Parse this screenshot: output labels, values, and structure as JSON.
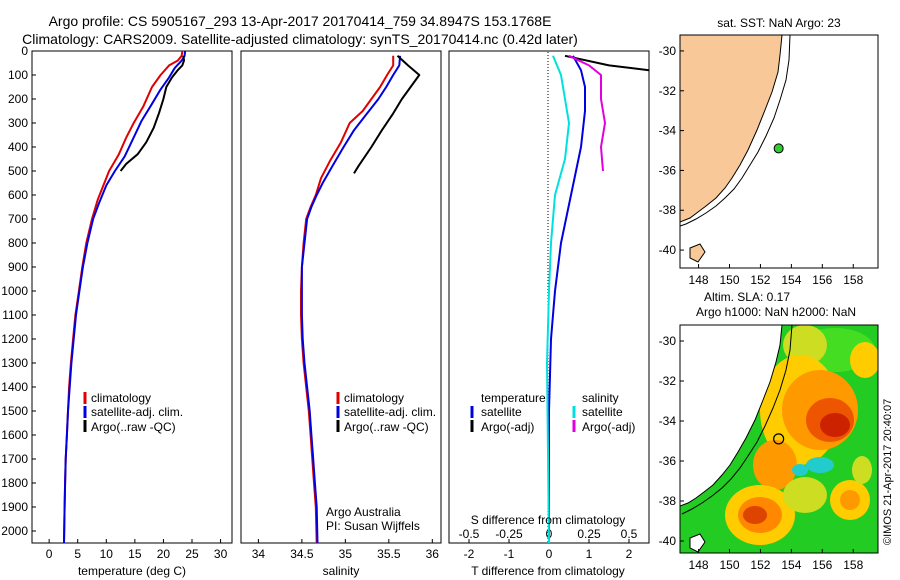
{
  "header": {
    "line1": "Argo profile: CS 5905167_293 13-Apr-2017 20170414_759 34.8947S 153.1768E",
    "line2": "Climatology: CARS2009. Satellite-adjusted climatology: synTS_20170414.nc (0.42d later)"
  },
  "credit": "©IMOS 21-Apr-2017 20:40:07",
  "colors": {
    "climatology": "#e00000",
    "satellite": "#0000e0",
    "argo": "#000000",
    "sat_salinity": "#00e0e0",
    "argo_salinity_diff": "#e000e0",
    "land": "#f8c898",
    "marker": "#33cc33"
  },
  "chart_data": [
    {
      "type": "line",
      "xlabel": "temperature (deg C)",
      "ylim": [
        0,
        2050
      ],
      "xlim": [
        -3,
        32
      ],
      "xticks": [
        "0",
        "5",
        "10",
        "15",
        "20",
        "25",
        "30"
      ],
      "yticks": [
        "0",
        "100",
        "200",
        "300",
        "400",
        "500",
        "600",
        "700",
        "800",
        "900",
        "1000",
        "1100",
        "1200",
        "1300",
        "1400",
        "1500",
        "1600",
        "1700",
        "1800",
        "1900",
        "2000"
      ],
      "legend": [
        "climatology",
        "satellite-adj. clim.",
        "Argo(..raw -QC)"
      ],
      "series": [
        {
          "name": "climatology",
          "color": "#e00000",
          "points": [
            [
              23.3,
              0
            ],
            [
              23.2,
              20
            ],
            [
              22.5,
              40
            ],
            [
              21,
              60
            ],
            [
              19.5,
              100
            ],
            [
              18,
              150
            ],
            [
              16.5,
              230
            ],
            [
              14.8,
              300
            ],
            [
              13.5,
              360
            ],
            [
              12.2,
              430
            ],
            [
              10.5,
              500
            ],
            [
              9.5,
              560
            ],
            [
              8.5,
              620
            ],
            [
              7.5,
              700
            ],
            [
              6.5,
              800
            ],
            [
              5.8,
              900
            ],
            [
              5.2,
              1000
            ],
            [
              4.6,
              1100
            ],
            [
              4.2,
              1200
            ],
            [
              3.8,
              1300
            ],
            [
              3.5,
              1400
            ],
            [
              3.3,
              1500
            ],
            [
              3.1,
              1600
            ],
            [
              2.9,
              1700
            ],
            [
              2.8,
              1800
            ],
            [
              2.7,
              1900
            ],
            [
              2.6,
              2050
            ]
          ]
        },
        {
          "name": "satellite-adj. clim.",
          "color": "#0000e0",
          "points": [
            [
              23.8,
              0
            ],
            [
              23.7,
              20
            ],
            [
              23.2,
              40
            ],
            [
              22,
              70
            ],
            [
              21,
              110
            ],
            [
              19.5,
              160
            ],
            [
              18,
              220
            ],
            [
              16.2,
              290
            ],
            [
              14.8,
              360
            ],
            [
              13.2,
              440
            ],
            [
              11.5,
              500
            ],
            [
              10,
              560
            ],
            [
              8.8,
              630
            ],
            [
              7.7,
              700
            ],
            [
              6.7,
              800
            ],
            [
              5.9,
              900
            ],
            [
              5.3,
              1000
            ],
            [
              4.7,
              1100
            ],
            [
              4.3,
              1200
            ],
            [
              3.9,
              1300
            ],
            [
              3.6,
              1400
            ],
            [
              3.3,
              1500
            ],
            [
              3.1,
              1600
            ],
            [
              2.9,
              1700
            ],
            [
              2.8,
              1800
            ],
            [
              2.7,
              1900
            ],
            [
              2.6,
              2050
            ]
          ]
        },
        {
          "name": "Argo(..raw -QC)",
          "color": "#000000",
          "points": [
            [
              23.5,
              20
            ],
            [
              23.6,
              40
            ],
            [
              23.3,
              60
            ],
            [
              22.5,
              80
            ],
            [
              21.5,
              110
            ],
            [
              20.5,
              150
            ],
            [
              20,
              200
            ],
            [
              19.2,
              260
            ],
            [
              18.3,
              320
            ],
            [
              17,
              380
            ],
            [
              15.5,
              430
            ],
            [
              13.5,
              470
            ],
            [
              12.5,
              500
            ]
          ]
        }
      ]
    },
    {
      "type": "line",
      "xlabel": "salinity",
      "ylim": [
        0,
        2050
      ],
      "xlim": [
        33.8,
        36.1
      ],
      "xticks": [
        "34",
        "34.5",
        "35",
        "35.5",
        "36"
      ],
      "legend": [
        "climatology",
        "satellite-adj. clim.",
        "Argo(..raw -QC)"
      ],
      "annotation": [
        "Argo Australia",
        "PI: Susan Wijffels"
      ],
      "series": [
        {
          "name": "climatology",
          "color": "#e00000",
          "points": [
            [
              35.55,
              20
            ],
            [
              35.55,
              60
            ],
            [
              35.48,
              100
            ],
            [
              35.4,
              150
            ],
            [
              35.3,
              200
            ],
            [
              35.2,
              250
            ],
            [
              35.05,
              300
            ],
            [
              34.95,
              380
            ],
            [
              34.82,
              460
            ],
            [
              34.72,
              530
            ],
            [
              34.66,
              600
            ],
            [
              34.6,
              650
            ],
            [
              34.55,
              700
            ],
            [
              34.52,
              800
            ],
            [
              34.5,
              900
            ],
            [
              34.49,
              1000
            ],
            [
              34.49,
              1100
            ],
            [
              34.5,
              1200
            ],
            [
              34.52,
              1300
            ],
            [
              34.55,
              1400
            ],
            [
              34.58,
              1500
            ],
            [
              34.6,
              1600
            ],
            [
              34.62,
              1700
            ],
            [
              34.64,
              1800
            ],
            [
              34.66,
              1900
            ],
            [
              34.67,
              2050
            ]
          ]
        },
        {
          "name": "satellite-adj. clim.",
          "color": "#0000e0",
          "points": [
            [
              35.63,
              20
            ],
            [
              35.62,
              60
            ],
            [
              35.55,
              100
            ],
            [
              35.47,
              150
            ],
            [
              35.38,
              200
            ],
            [
              35.25,
              260
            ],
            [
              35.1,
              330
            ],
            [
              34.98,
              400
            ],
            [
              34.85,
              480
            ],
            [
              34.74,
              550
            ],
            [
              34.67,
              600
            ],
            [
              34.61,
              650
            ],
            [
              34.56,
              700
            ],
            [
              34.53,
              800
            ],
            [
              34.5,
              900
            ],
            [
              34.5,
              1000
            ],
            [
              34.5,
              1100
            ],
            [
              34.51,
              1200
            ],
            [
              34.53,
              1300
            ],
            [
              34.56,
              1400
            ],
            [
              34.59,
              1500
            ],
            [
              34.61,
              1600
            ],
            [
              34.63,
              1700
            ],
            [
              34.65,
              1800
            ],
            [
              34.67,
              1900
            ],
            [
              34.68,
              2050
            ]
          ]
        },
        {
          "name": "Argo(..raw -QC)",
          "color": "#000000",
          "points": [
            [
              35.6,
              20
            ],
            [
              35.72,
              60
            ],
            [
              35.85,
              100
            ],
            [
              35.75,
              150
            ],
            [
              35.65,
              200
            ],
            [
              35.55,
              260
            ],
            [
              35.42,
              330
            ],
            [
              35.3,
              400
            ],
            [
              35.15,
              480
            ],
            [
              35.1,
              510
            ]
          ]
        }
      ]
    },
    {
      "type": "line",
      "xlabel": "T difference from climatology",
      "xlabel_top": "S difference from climatology",
      "ylim": [
        0,
        2050
      ],
      "xlim": [
        -2.5,
        2.5
      ],
      "xticks": [
        "-2",
        "-1",
        "0",
        "1",
        "2"
      ],
      "xticks_top": [
        "-0.5",
        "-0.25",
        "0",
        "0.25",
        "0.5"
      ],
      "legend_left": [
        "temperature",
        "satellite",
        "Argo(-adj)"
      ],
      "legend_right": [
        "salinity",
        "satellite",
        "Argo(-adj)"
      ],
      "series": [
        {
          "name": "satellite",
          "color": "#0000e0",
          "points": [
            [
              0.6,
              20
            ],
            [
              0.8,
              80
            ],
            [
              0.9,
              150
            ],
            [
              0.9,
              250
            ],
            [
              0.8,
              400
            ],
            [
              0.55,
              600
            ],
            [
              0.3,
              800
            ],
            [
              0.15,
              1000
            ],
            [
              0.05,
              1200
            ],
            [
              0,
              1500
            ],
            [
              0,
              2050
            ]
          ]
        },
        {
          "name": "Argo(-adj)",
          "color": "#000000",
          "points": [
            [
              0.4,
              20
            ],
            [
              1.5,
              60
            ],
            [
              2.5,
              80
            ]
          ]
        },
        {
          "name": "satellite",
          "color": "#00e0e0",
          "points": [
            [
              0.1,
              20
            ],
            [
              0.3,
              100
            ],
            [
              0.4,
              200
            ],
            [
              0.5,
              300
            ],
            [
              0.4,
              450
            ],
            [
              0.15,
              600
            ],
            [
              0.05,
              800
            ],
            [
              0,
              1000
            ],
            [
              -0.05,
              1300
            ],
            [
              -0.03,
              1600
            ],
            [
              0,
              2050
            ]
          ]
        },
        {
          "name": "Argo(-adj)",
          "color": "#e000e0",
          "points": [
            [
              0.5,
              20
            ],
            [
              1.0,
              60
            ],
            [
              1.3,
              100
            ],
            [
              1.3,
              200
            ],
            [
              1.4,
              300
            ],
            [
              1.3,
              400
            ],
            [
              1.35,
              500
            ]
          ]
        }
      ]
    },
    {
      "type": "map",
      "title": "sat. SST: NaN Argo: 23",
      "lat_ticks": [
        "-30",
        "-32",
        "-34",
        "-36",
        "-38",
        "-40"
      ],
      "lon_ticks": [
        "148",
        "150",
        "152",
        "154",
        "156",
        "158"
      ],
      "argo_position": {
        "lat": -34.8947,
        "lon": 153.1768
      }
    },
    {
      "type": "heatmap",
      "title_line1": "Altim. SLA: 0.17",
      "title_line2": "Argo h1000: NaN h2000: NaN",
      "lat_ticks": [
        "-30",
        "-32",
        "-34",
        "-36",
        "-38",
        "-40"
      ],
      "lon_ticks": [
        "148",
        "150",
        "152",
        "154",
        "156",
        "158"
      ],
      "argo_position": {
        "lat": -34.8947,
        "lon": 153.1768
      }
    }
  ]
}
